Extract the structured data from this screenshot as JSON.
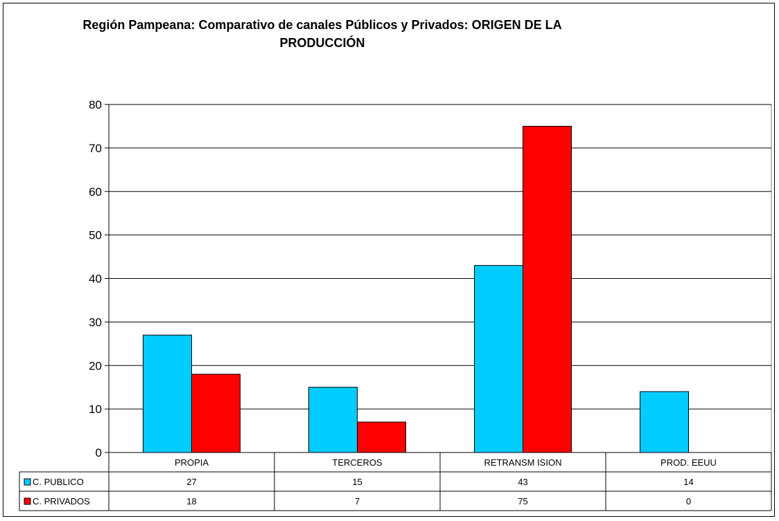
{
  "chart_data": {
    "type": "bar",
    "title_line1": "Región Pampeana: Comparativo de canales Públicos y Privados: ORIGEN DE LA",
    "title_line2": "PRODUCCIÓN",
    "categories": [
      "PROPIA",
      "TERCEROS",
      "RETRANSM ISION",
      "PROD. EEUU"
    ],
    "series": [
      {
        "name": "C. PUBLICO",
        "values": [
          27,
          15,
          43,
          14
        ],
        "color": "#00CCFF"
      },
      {
        "name": "C. PRIVADOS",
        "values": [
          18,
          7,
          75,
          0
        ],
        "color": "#FF0000"
      }
    ],
    "table_values": [
      [
        "27",
        "15",
        "43",
        "14"
      ],
      [
        "18",
        "7",
        "75",
        "0"
      ]
    ],
    "ylim": [
      0,
      80
    ],
    "yticks": [
      0,
      10,
      20,
      30,
      40,
      50,
      60,
      70,
      80
    ],
    "grid": true,
    "plot_background": "#ffffff",
    "gridline_color": "#000000",
    "legend_placement": "data-table"
  }
}
